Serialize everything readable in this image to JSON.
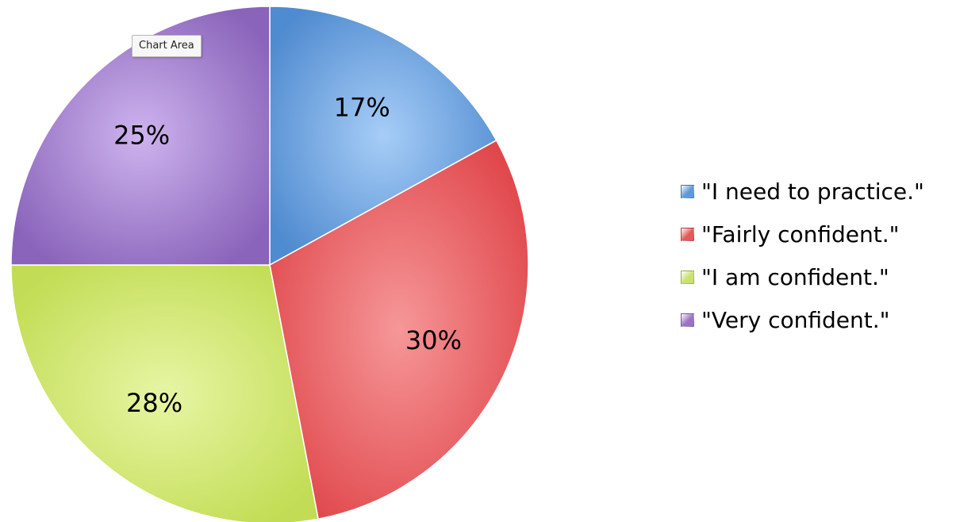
{
  "tooltip": {
    "text": "Chart Area"
  },
  "colors": {
    "blue": "#5e9ad8",
    "red": "#e6575a",
    "green": "#c9e26a",
    "purple": "#9a73c6"
  },
  "chart_data": {
    "type": "pie",
    "title": "",
    "categories": [
      "\"I need to practice.\"",
      "\"Fairly confident.\"",
      "\"I am confident.\"",
      "\"Very confident.\""
    ],
    "values": [
      17,
      30,
      28,
      25
    ],
    "labels": [
      "17%",
      "30%",
      "28%",
      "25%"
    ],
    "start_angle_deg": 0,
    "direction": "clockwise",
    "legend": "right",
    "series_colors": [
      "#5e9ad8",
      "#e6575a",
      "#c9e26a",
      "#9a73c6"
    ]
  }
}
